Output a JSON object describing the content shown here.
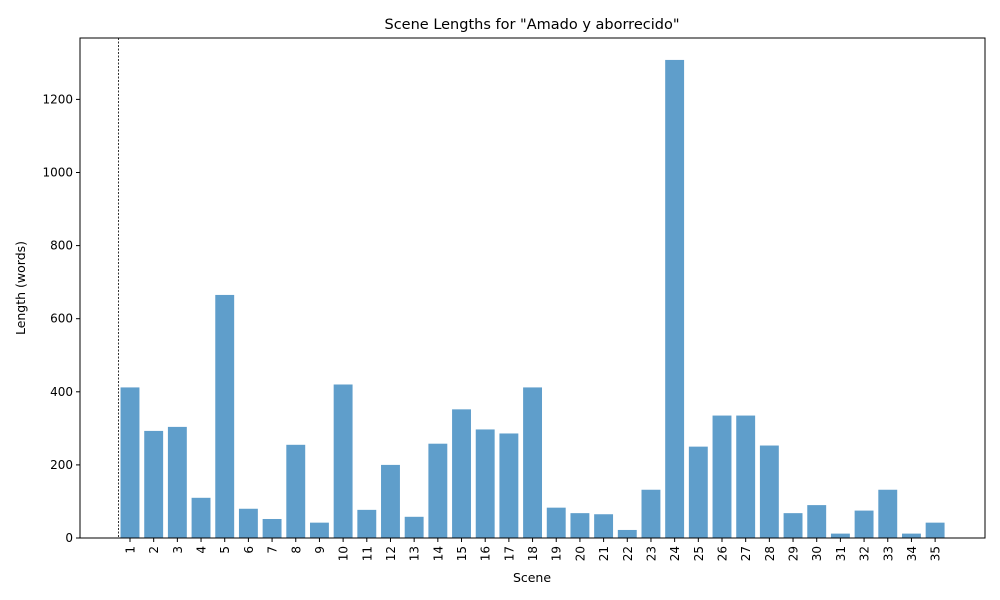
{
  "chart_data": {
    "type": "bar",
    "title": "Scene Lengths for \"Amado y aborrecido\"",
    "xlabel": "Scene",
    "ylabel": "Length (words)",
    "categories": [
      "1",
      "2",
      "3",
      "4",
      "5",
      "6",
      "7",
      "8",
      "9",
      "10",
      "11",
      "12",
      "13",
      "14",
      "15",
      "16",
      "17",
      "18",
      "19",
      "20",
      "21",
      "22",
      "23",
      "24",
      "25",
      "26",
      "27",
      "28",
      "29",
      "30",
      "31",
      "32",
      "33",
      "34",
      "35"
    ],
    "values": [
      412,
      293,
      304,
      110,
      665,
      80,
      52,
      255,
      42,
      420,
      77,
      200,
      58,
      258,
      352,
      297,
      286,
      412,
      83,
      68,
      65,
      22,
      132,
      1308,
      250,
      335,
      335,
      253,
      68,
      90,
      12,
      75,
      132,
      12,
      42
    ],
    "ylim": [
      0,
      1368
    ],
    "yticks": [
      0,
      200,
      400,
      600,
      800,
      1000,
      1200
    ],
    "bar_color": "#5f9ecb",
    "marker_line": {
      "at_x": "1",
      "style": "dashed",
      "color": "#000000"
    },
    "grid": false,
    "legend": "none"
  }
}
